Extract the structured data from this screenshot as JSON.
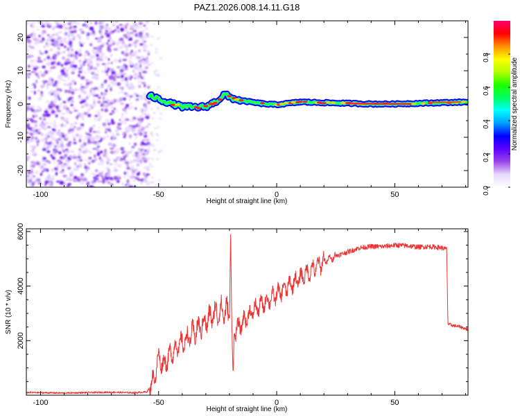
{
  "title": "PAZ1.2026.008.14.11.G18",
  "chart_data": [
    {
      "type": "heatmap",
      "name": "spectrogram",
      "xlabel": "Height of straight line (km)",
      "ylabel": "Frequency (Hz)",
      "xlim": [
        -106,
        81
      ],
      "ylim": [
        -25,
        25
      ],
      "xticks": [
        -100,
        -50,
        0,
        50
      ],
      "yticks": [
        -20,
        -10,
        0,
        10,
        20
      ],
      "noise_region_km": [
        -106,
        -54
      ],
      "ridge": {
        "x": [
          -54,
          -50,
          -45,
          -40,
          -35,
          -30,
          -25,
          -22,
          -20,
          -15,
          -10,
          -5,
          0,
          10,
          20,
          30,
          40,
          50,
          60,
          70,
          81
        ],
        "y": [
          2.5,
          1.5,
          0.2,
          -0.8,
          -1.0,
          -0.8,
          1.0,
          3.0,
          2.0,
          1.0,
          0.5,
          0.0,
          -0.2,
          0.6,
          0.4,
          0.2,
          0.0,
          0.0,
          0.2,
          0.4,
          0.6
        ]
      },
      "colorbar": {
        "label": "Normalized spectral amplitude",
        "range": [
          0,
          1
        ],
        "ticks": [
          "0.0",
          "0.2",
          "0.4",
          "0.6",
          "0.8"
        ],
        "colors": [
          "#ffffff",
          "#e8d8ff",
          "#9a45e8",
          "#5a00ff",
          "#0000ff",
          "#00a0ff",
          "#00ffff",
          "#00ff60",
          "#20ff00",
          "#b0ff00",
          "#ffff00",
          "#ff9000",
          "#ff0000",
          "#ff0070"
        ]
      }
    },
    {
      "type": "line",
      "name": "snr",
      "xlabel": "Height of straight line (km)",
      "ylabel": "SNR (10 * v/v)",
      "xlim": [
        -106,
        81
      ],
      "ylim": [
        0,
        6100
      ],
      "xticks": [
        -100,
        -50,
        0,
        50
      ],
      "yticks": [
        2000,
        4000,
        6000
      ],
      "line_color": "#ee3333",
      "series": {
        "x": [
          -106,
          -90,
          -70,
          -60,
          -55,
          -53,
          -51,
          -50,
          -48,
          -45,
          -42,
          -40,
          -35,
          -30,
          -26,
          -23,
          -20,
          -19.5,
          -19,
          -18.5,
          -18,
          -15,
          -12,
          -10,
          -5,
          0,
          5,
          10,
          15,
          20,
          25,
          30,
          35,
          40,
          45,
          50,
          55,
          60,
          65,
          70,
          72,
          72.5,
          75,
          78,
          81
        ],
        "y": [
          100,
          80,
          110,
          90,
          120,
          400,
          900,
          1400,
          1100,
          1500,
          1800,
          1900,
          2300,
          2700,
          3000,
          3100,
          3000,
          6000,
          2500,
          600,
          2300,
          2600,
          2900,
          3100,
          3400,
          3700,
          4000,
          4300,
          4600,
          4900,
          5100,
          5250,
          5400,
          5450,
          5450,
          5500,
          5480,
          5430,
          5450,
          5400,
          5350,
          2600,
          2550,
          2500,
          2400
        ]
      }
    }
  ]
}
